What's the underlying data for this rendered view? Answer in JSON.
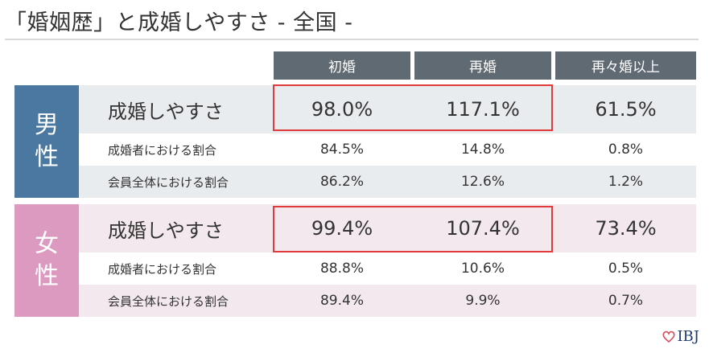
{
  "title": "「婚姻歴」と成婚しやすさ - 全国 -",
  "columns": [
    "初婚",
    "再婚",
    "再々婚以上"
  ],
  "groups": [
    {
      "label_line1": "男",
      "label_line2": "性",
      "rows": [
        {
          "label": "成婚しやすさ",
          "values": [
            "98.0%",
            "117.1%",
            "61.5%"
          ]
        },
        {
          "label": "成婚者における割合",
          "values": [
            "84.5%",
            "14.8%",
            "0.8%"
          ]
        },
        {
          "label": "会員全体における割合",
          "values": [
            "86.2%",
            "12.6%",
            "1.2%"
          ]
        }
      ]
    },
    {
      "label_line1": "女",
      "label_line2": "性",
      "rows": [
        {
          "label": "成婚しやすさ",
          "values": [
            "99.4%",
            "107.4%",
            "73.4%"
          ]
        },
        {
          "label": "成婚者における割合",
          "values": [
            "88.8%",
            "10.6%",
            "0.5%"
          ]
        },
        {
          "label": "会員全体における割合",
          "values": [
            "89.4%",
            "9.9%",
            "0.7%"
          ]
        }
      ]
    }
  ],
  "colors": {
    "header": "#606a72",
    "male": "#4a78a0",
    "female": "#dd9ac0",
    "highlight": "#e03a3a"
  },
  "logo": {
    "icon": "heart-icon",
    "text": "IBJ"
  }
}
